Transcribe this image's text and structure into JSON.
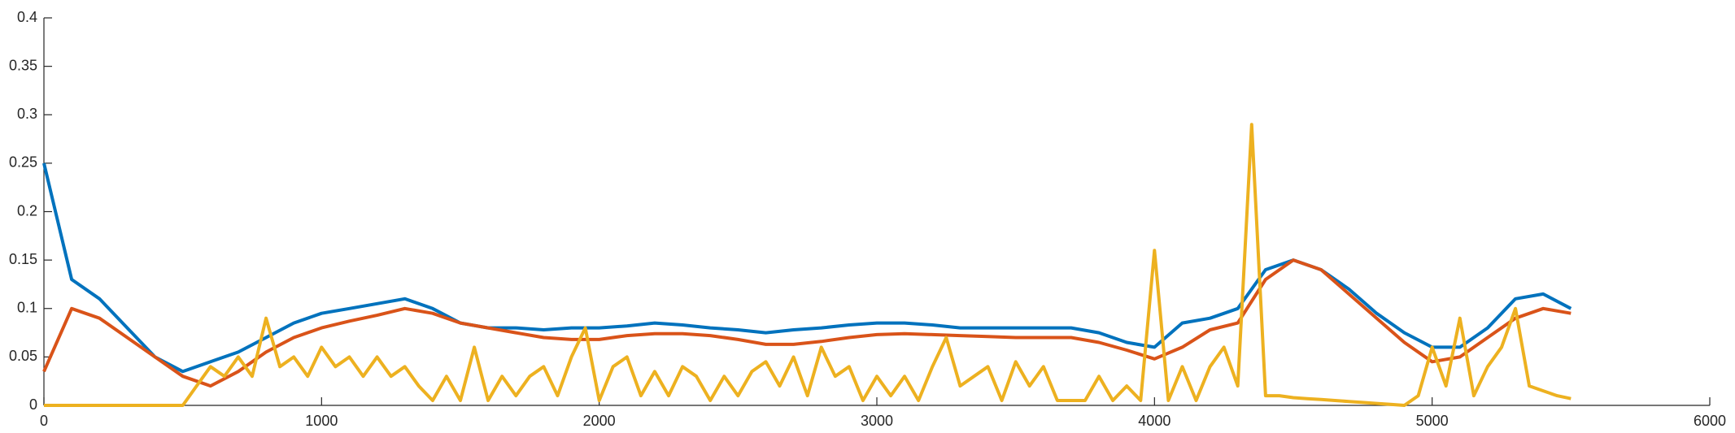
{
  "chart_data": {
    "type": "line",
    "x": [
      0,
      100,
      200,
      300,
      400,
      500,
      600,
      700,
      800,
      900,
      1000,
      1100,
      1200,
      1300,
      1400,
      1500,
      1600,
      1700,
      1800,
      1900,
      2000,
      2100,
      2200,
      2300,
      2400,
      2500,
      2600,
      2700,
      2800,
      2900,
      3000,
      3100,
      3200,
      3300,
      3400,
      3500,
      3600,
      3700,
      3800,
      3900,
      4000,
      4100,
      4200,
      4300,
      4400,
      4500,
      4600,
      4700,
      4800,
      4900,
      5000,
      5100,
      5200,
      5300,
      5400,
      5500
    ],
    "series": [
      {
        "color": "#0072bd",
        "values": [
          0.25,
          0.13,
          0.11,
          0.08,
          0.05,
          0.035,
          0.045,
          0.055,
          0.07,
          0.085,
          0.095,
          0.1,
          0.105,
          0.11,
          0.1,
          0.085,
          0.08,
          0.08,
          0.078,
          0.08,
          0.08,
          0.082,
          0.085,
          0.083,
          0.08,
          0.078,
          0.075,
          0.078,
          0.08,
          0.083,
          0.085,
          0.085,
          0.083,
          0.08,
          0.08,
          0.08,
          0.08,
          0.08,
          0.075,
          0.065,
          0.06,
          0.085,
          0.09,
          0.1,
          0.14,
          0.15,
          0.14,
          0.12,
          0.095,
          0.075,
          0.06,
          0.06,
          0.08,
          0.11,
          0.115,
          0.1
        ]
      },
      {
        "color": "#d95319",
        "values": [
          0.035,
          0.1,
          0.09,
          0.07,
          0.05,
          0.03,
          0.02,
          0.035,
          0.055,
          0.07,
          0.08,
          0.087,
          0.093,
          0.1,
          0.095,
          0.085,
          0.08,
          0.075,
          0.07,
          0.068,
          0.068,
          0.072,
          0.074,
          0.074,
          0.072,
          0.068,
          0.063,
          0.063,
          0.066,
          0.07,
          0.073,
          0.074,
          0.073,
          0.072,
          0.071,
          0.07,
          0.07,
          0.07,
          0.065,
          0.057,
          0.048,
          0.06,
          0.078,
          0.085,
          0.13,
          0.15,
          0.14,
          0.115,
          0.09,
          0.065,
          0.045,
          0.05,
          0.07,
          0.09,
          0.1,
          0.095
        ]
      },
      {
        "color": "#edb120",
        "x": [
          0,
          50,
          100,
          150,
          200,
          250,
          300,
          350,
          400,
          450,
          500,
          550,
          600,
          650,
          700,
          750,
          800,
          850,
          900,
          950,
          1000,
          1050,
          1100,
          1150,
          1200,
          1250,
          1300,
          1350,
          1400,
          1450,
          1500,
          1550,
          1600,
          1650,
          1700,
          1750,
          1800,
          1850,
          1900,
          1950,
          2000,
          2050,
          2100,
          2150,
          2200,
          2250,
          2300,
          2350,
          2400,
          2450,
          2500,
          2550,
          2600,
          2650,
          2700,
          2750,
          2800,
          2850,
          2900,
          2950,
          3000,
          3050,
          3100,
          3150,
          3200,
          3250,
          3300,
          3350,
          3400,
          3450,
          3500,
          3550,
          3600,
          3650,
          3700,
          3750,
          3800,
          3850,
          3900,
          3950,
          4000,
          4050,
          4100,
          4150,
          4200,
          4250,
          4300,
          4350,
          4400,
          4450,
          4500,
          4550,
          4600,
          4650,
          4700,
          4750,
          4800,
          4850,
          4900,
          4950,
          5000,
          5050,
          5100,
          5150,
          5200,
          5250,
          5300,
          5350,
          5400,
          5450,
          5500
        ],
        "values": [
          0,
          0,
          0,
          0,
          0,
          0,
          0,
          0,
          0,
          0,
          0,
          0.02,
          0.04,
          0.03,
          0.05,
          0.03,
          0.09,
          0.04,
          0.05,
          0.03,
          0.06,
          0.04,
          0.05,
          0.03,
          0.05,
          0.03,
          0.04,
          0.02,
          0.005,
          0.03,
          0.005,
          0.06,
          0.005,
          0.03,
          0.01,
          0.03,
          0.04,
          0.01,
          0.05,
          0.08,
          0.005,
          0.04,
          0.05,
          0.01,
          0.035,
          0.01,
          0.04,
          0.03,
          0.005,
          0.03,
          0.01,
          0.035,
          0.045,
          0.02,
          0.05,
          0.01,
          0.06,
          0.03,
          0.04,
          0.005,
          0.03,
          0.01,
          0.03,
          0.005,
          0.04,
          0.07,
          0.02,
          0.03,
          0.04,
          0.005,
          0.045,
          0.02,
          0.04,
          0.005,
          0.005,
          0.005,
          0.03,
          0.005,
          0.02,
          0.005,
          0.16,
          0.005,
          0.04,
          0.005,
          0.04,
          0.06,
          0.02,
          0.29,
          0.01,
          0.01,
          0.008,
          0.007,
          0.006,
          0.005,
          0.004,
          0.003,
          0.002,
          0.001,
          0,
          0.01,
          0.06,
          0.02,
          0.09,
          0.01,
          0.04,
          0.06,
          0.1,
          0.02,
          0.015,
          0.01,
          0.007
        ]
      }
    ],
    "xlim": [
      0,
      6000
    ],
    "xticks": [
      0,
      1000,
      2000,
      3000,
      4000,
      5000,
      6000
    ],
    "ylim": [
      0,
      0.4
    ],
    "yticks": [
      0,
      0.05,
      0.1,
      0.15,
      0.2,
      0.25,
      0.3,
      0.35,
      0.4
    ],
    "grid": false
  }
}
